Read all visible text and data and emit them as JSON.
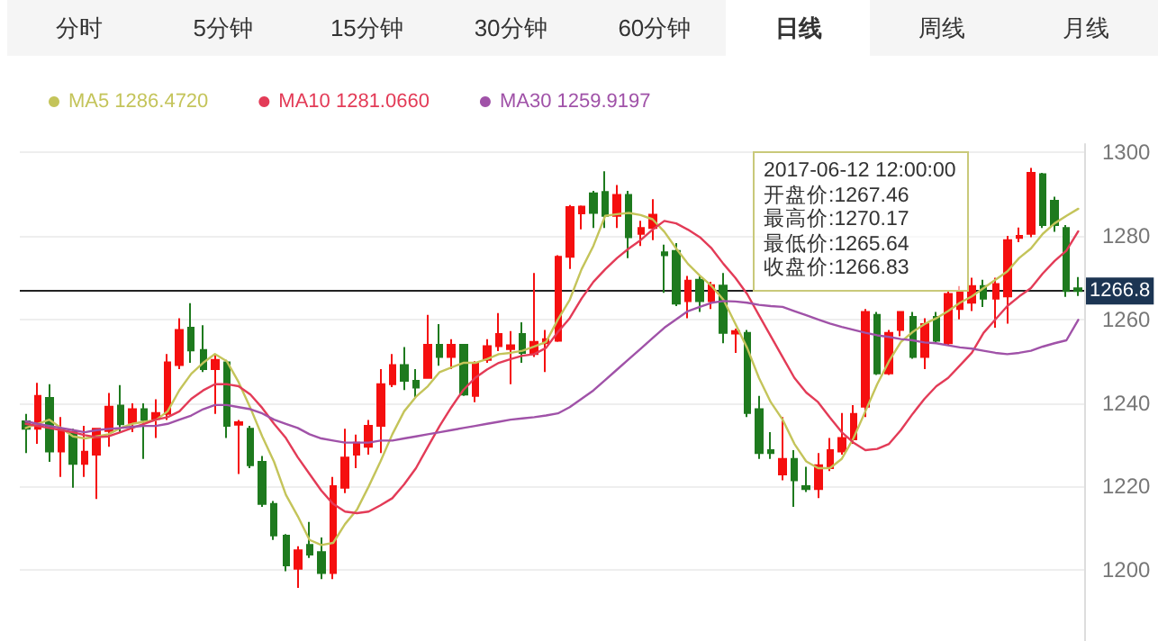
{
  "chart_data": {
    "type": "candlestick",
    "categories": [
      null,
      null,
      null,
      null,
      null,
      null,
      null,
      null,
      null,
      null,
      null,
      null,
      null,
      null,
      null,
      null,
      null,
      null,
      null,
      null,
      null,
      null,
      null,
      null,
      null,
      null,
      null,
      null,
      null,
      null,
      null,
      null,
      null,
      null,
      null,
      null,
      null,
      null,
      null,
      null,
      null,
      null,
      null,
      null,
      null,
      null,
      null,
      null,
      null,
      null,
      null,
      null,
      null,
      null,
      null,
      null,
      null,
      null,
      null,
      null,
      null,
      null,
      null,
      null,
      null,
      null,
      null,
      null,
      null,
      null,
      null,
      null,
      null,
      null,
      null,
      null,
      null,
      null,
      null,
      null,
      null,
      null,
      null,
      null,
      null,
      null,
      null,
      null,
      null,
      null
    ],
    "ohlc": [
      [
        1235.6,
        1237.4,
        1228.0,
        1233.8
      ],
      [
        1233.8,
        1244.8,
        1230.2,
        1241.7
      ],
      [
        1241.2,
        1244.5,
        1225.9,
        1228.4
      ],
      [
        1228.4,
        1236.6,
        1222.3,
        1233.8
      ],
      [
        1233.0,
        1233.8,
        1219.7,
        1225.4
      ],
      [
        1225.4,
        1234.5,
        1222.3,
        1228.3
      ],
      [
        1227.6,
        1233.8,
        1217.0,
        1233.8
      ],
      [
        1233.3,
        1242.4,
        1229.5,
        1239.1
      ],
      [
        1239.4,
        1244.3,
        1233.0,
        1234.9
      ],
      [
        1235.2,
        1239.9,
        1233.0,
        1238.5
      ],
      [
        1238.5,
        1239.9,
        1226.6,
        1235.9
      ],
      [
        1236.2,
        1240.9,
        1231.6,
        1237.6
      ],
      [
        1237.4,
        1251.7,
        1235.9,
        1249.7
      ],
      [
        1249.1,
        1260.3,
        1248.1,
        1257.5
      ],
      [
        1258.0,
        1263.9,
        1249.6,
        1252.6
      ],
      [
        1252.7,
        1258.6,
        1247.4,
        1248.1
      ],
      [
        1248.1,
        1251.7,
        1237.4,
        1250.3
      ],
      [
        1249.7,
        1250.3,
        1231.6,
        1234.5
      ],
      [
        1234.8,
        1235.9,
        1223.0,
        1235.4
      ],
      [
        1233.8,
        1234.5,
        1224.4,
        1225.1
      ],
      [
        1225.9,
        1227.3,
        1215.1,
        1215.8
      ],
      [
        1215.8,
        1216.5,
        1207.2,
        1208.3
      ],
      [
        1208.2,
        1208.6,
        1199.7,
        1201.1
      ],
      [
        1200.3,
        1205.7,
        1195.7,
        1204.7
      ],
      [
        1206.0,
        1211.5,
        1202.9,
        1203.7
      ],
      [
        1204.3,
        1207.8,
        1197.8,
        1199.3
      ],
      [
        1199.3,
        1222.3,
        1197.8,
        1220.1
      ],
      [
        1219.7,
        1233.8,
        1218.4,
        1226.9
      ],
      [
        1227.6,
        1232.4,
        1224.4,
        1230.5
      ],
      [
        1229.5,
        1235.9,
        1227.6,
        1234.5
      ],
      [
        1234.5,
        1248.1,
        1228.0,
        1244.5
      ],
      [
        1244.5,
        1251.7,
        1243.8,
        1249.1
      ],
      [
        1249.1,
        1253.4,
        1243.1,
        1245.3
      ],
      [
        1245.3,
        1248.1,
        1241.4,
        1243.7
      ],
      [
        1246.0,
        1261.1,
        1246.0,
        1253.9
      ],
      [
        1253.9,
        1258.9,
        1248.9,
        1251.0
      ],
      [
        1251.0,
        1255.3,
        1248.1,
        1253.9
      ],
      [
        1253.9,
        1253.9,
        1241.7,
        1242.0
      ],
      [
        1241.7,
        1250.0,
        1240.2,
        1249.4
      ],
      [
        1250.3,
        1255.3,
        1249.6,
        1253.6
      ],
      [
        1253.6,
        1261.5,
        1252.4,
        1256.5
      ],
      [
        1252.9,
        1257.2,
        1244.5,
        1253.8
      ],
      [
        1256.5,
        1259.3,
        1249.6,
        1252.0
      ],
      [
        1251.7,
        1271.1,
        1251.0,
        1254.6
      ],
      [
        1254.3,
        1257.5,
        1247.4,
        1255.3
      ],
      [
        1254.9,
        1275.4,
        1254.6,
        1275.0
      ],
      [
        1275.0,
        1287.4,
        1272.1,
        1286.9
      ],
      [
        1285.4,
        1287.3,
        1281.6,
        1287.0
      ],
      [
        1290.2,
        1290.8,
        1281.9,
        1285.5
      ],
      [
        1290.5,
        1295.5,
        1281.9,
        1284.8
      ],
      [
        1284.8,
        1292.2,
        1281.9,
        1289.8
      ],
      [
        1289.8,
        1290.8,
        1274.7,
        1279.7
      ],
      [
        1280.5,
        1283.6,
        1277.6,
        1281.9
      ],
      [
        1281.9,
        1288.8,
        1279.0,
        1285.1
      ],
      [
        1276.1,
        1277.9,
        1266.4,
        1275.4
      ],
      [
        1276.4,
        1278.3,
        1263.2,
        1263.8
      ],
      [
        1264.4,
        1270.4,
        1260.3,
        1269.3
      ],
      [
        1269.5,
        1270.4,
        1261.8,
        1264.4
      ],
      [
        1264.4,
        1269.0,
        1262.5,
        1268.2
      ],
      [
        1268.1,
        1271.1,
        1254.3,
        1256.8
      ],
      [
        1256.6,
        1257.8,
        1252.0,
        1257.2
      ],
      [
        1256.8,
        1257.5,
        1236.6,
        1237.6
      ],
      [
        1238.5,
        1241.7,
        1226.6,
        1228.0
      ],
      [
        1228.7,
        1233.0,
        1226.6,
        1228.0
      ],
      [
        1222.9,
        1236.6,
        1221.5,
        1226.6
      ],
      [
        1226.6,
        1228.7,
        1215.1,
        1221.5
      ],
      [
        1220.1,
        1224.7,
        1218.7,
        1219.4
      ],
      [
        1219.4,
        1228.0,
        1217.2,
        1225.1
      ],
      [
        1224.4,
        1231.6,
        1223.7,
        1228.7
      ],
      [
        1228.4,
        1237.6,
        1227.6,
        1231.6
      ],
      [
        1231.3,
        1239.5,
        1230.2,
        1237.4
      ],
      [
        1239.1,
        1262.5,
        1236.6,
        1261.8
      ],
      [
        1261.1,
        1261.8,
        1246.7,
        1247.1
      ],
      [
        1247.1,
        1257.5,
        1246.7,
        1256.8
      ],
      [
        1257.5,
        1262.0,
        1256.0,
        1261.8
      ],
      [
        1260.6,
        1261.8,
        1250.6,
        1251.0
      ],
      [
        1251.0,
        1260.3,
        1248.1,
        1258.9
      ],
      [
        1260.6,
        1261.8,
        1254.3,
        1254.9
      ],
      [
        1254.3,
        1266.8,
        1253.9,
        1266.1
      ],
      [
        1262.5,
        1268.0,
        1260.0,
        1266.5
      ],
      [
        1264.0,
        1270.0,
        1262.0,
        1268.0
      ],
      [
        1268.0,
        1269.5,
        1263.0,
        1265.0
      ],
      [
        1265.0,
        1270.0,
        1258.0,
        1268.5
      ],
      [
        1265.5,
        1280.0,
        1259.0,
        1279.0
      ],
      [
        1279.5,
        1282.0,
        1278.5,
        1280.0
      ],
      [
        1280.5,
        1296.3,
        1279.7,
        1295.1
      ],
      [
        1294.8,
        1295.1,
        1281.9,
        1282.6
      ],
      [
        1288.4,
        1289.4,
        1281.0,
        1282.6
      ],
      [
        1281.9,
        1282.6,
        1265.4,
        1266.8
      ],
      [
        1267.46,
        1270.17,
        1265.64,
        1266.83
      ]
    ],
    "colors": [
      "#1e7a1e",
      "#f50f0f",
      "#1e7a1e",
      "#f50f0f",
      "#1e7a1e",
      "#f50f0f",
      "#f50f0f",
      "#f50f0f",
      "#1e7a1e",
      "#f50f0f",
      "#1e7a1e",
      "#f50f0f",
      "#f50f0f",
      "#f50f0f",
      "#1e7a1e",
      "#1e7a1e",
      "#f50f0f",
      "#1e7a1e",
      "#f50f0f",
      "#1e7a1e",
      "#1e7a1e",
      "#1e7a1e",
      "#1e7a1e",
      "#f50f0f",
      "#1e7a1e",
      "#1e7a1e",
      "#f50f0f",
      "#f50f0f",
      "#f50f0f",
      "#f50f0f",
      "#f50f0f",
      "#f50f0f",
      "#1e7a1e",
      "#1e7a1e",
      "#f50f0f",
      "#1e7a1e",
      "#f50f0f",
      "#1e7a1e",
      "#f50f0f",
      "#f50f0f",
      "#f50f0f",
      "#f50f0f",
      "#1e7a1e",
      "#f50f0f",
      "#f50f0f",
      "#f50f0f",
      "#f50f0f",
      "#f50f0f",
      "#1e7a1e",
      "#1e7a1e",
      "#f50f0f",
      "#1e7a1e",
      "#f50f0f",
      "#f50f0f",
      "#1e7a1e",
      "#1e7a1e",
      "#f50f0f",
      "#1e7a1e",
      "#f50f0f",
      "#1e7a1e",
      "#f50f0f",
      "#1e7a1e",
      "#1e7a1e",
      "#1e7a1e",
      "#f50f0f",
      "#1e7a1e",
      "#1e7a1e",
      "#f50f0f",
      "#f50f0f",
      "#f50f0f",
      "#f50f0f",
      "#f50f0f",
      "#1e7a1e",
      "#f50f0f",
      "#f50f0f",
      "#1e7a1e",
      "#f50f0f",
      "#1e7a1e",
      "#f50f0f",
      "#f50f0f",
      "#f50f0f",
      "#1e7a1e",
      "#f50f0f",
      "#f50f0f",
      "#f50f0f",
      "#f50f0f",
      "#1e7a1e",
      "#1e7a1e",
      "#1e7a1e",
      "#1e7a1e"
    ],
    "series": [
      {
        "name": "MA5 1286.4720",
        "type": "line",
        "color": "#c4c45a",
        "values": [
          1234,
          1235,
          1236,
          1234,
          1232,
          1231.5,
          1232,
          1232.5,
          1234,
          1235,
          1235.5,
          1235.9,
          1238,
          1243.1,
          1247,
          1249.6,
          1251.7,
          1250,
          1245,
          1238.8,
          1232,
          1225.9,
          1218,
          1212.9,
          1207.2,
          1206,
          1206.5,
          1211,
          1214.4,
          1220,
          1226,
          1232.5,
          1238,
          1241.5,
          1244,
          1247.4,
          1248.5,
          1249.6,
          1249.6,
          1250.5,
          1251.7,
          1252,
          1252.5,
          1253.5,
          1254.6,
          1260,
          1264.7,
          1272,
          1277.6,
          1284.8,
          1285.2,
          1285.5,
          1285,
          1284,
          1281,
          1277,
          1273.3,
          1270.5,
          1268,
          1264.7,
          1259,
          1253.2,
          1246,
          1240.2,
          1236,
          1230.2,
          1226,
          1224.4,
          1224.4,
          1226.6,
          1231.6,
          1238,
          1244.5,
          1250,
          1254.6,
          1257,
          1258.9,
          1260.3,
          1262,
          1264,
          1265.5,
          1267.5,
          1269.5,
          1271.5,
          1274.7,
          1277,
          1280.5,
          1283,
          1284.8,
          1286.5
        ]
      },
      {
        "name": "MA10 1281.0660",
        "type": "line",
        "color": "#e33b57",
        "values": [
          1235,
          1234.5,
          1234,
          1233.5,
          1233,
          1232.3,
          1231.8,
          1232,
          1233,
          1234,
          1235,
          1236,
          1236.6,
          1238,
          1241,
          1243,
          1244.5,
          1244.5,
          1244,
          1242,
          1238.8,
          1235,
          1231.6,
          1227,
          1223,
          1219,
          1215.8,
          1214,
          1213.6,
          1214,
          1215.5,
          1217.2,
          1220.5,
          1224.4,
          1229.5,
          1234.5,
          1239,
          1243.1,
          1246,
          1248,
          1249.6,
          1250.5,
          1251.3,
          1251.7,
          1253.2,
          1257,
          1260.3,
          1265,
          1269,
          1272,
          1274.7,
          1277,
          1279,
          1281.5,
          1283.6,
          1283,
          1281.5,
          1279.7,
          1277,
          1273.3,
          1270,
          1266.1,
          1261,
          1256,
          1251,
          1246,
          1242.5,
          1240.2,
          1236.5,
          1233,
          1230.5,
          1228.7,
          1229,
          1230.2,
          1233.5,
          1237.4,
          1241,
          1244,
          1246,
          1249,
          1252,
          1256.8,
          1260,
          1263.2,
          1265.5,
          1267.5,
          1271,
          1274,
          1276.5,
          1281.1
        ]
      },
      {
        "name": "MA30 1259.9197",
        "type": "line",
        "color": "#a052a8",
        "values": [
          1235.6,
          1235,
          1234.5,
          1234,
          1233.5,
          1233,
          1233.5,
          1233.8,
          1234,
          1234.3,
          1234.5,
          1234.5,
          1235,
          1236,
          1237,
          1238.5,
          1239.5,
          1239.5,
          1239,
          1238.5,
          1237.5,
          1236,
          1235,
          1234,
          1232.5,
          1231.5,
          1231,
          1230.5,
          1230.5,
          1230.5,
          1231,
          1231,
          1231.5,
          1232,
          1232.5,
          1233,
          1233.5,
          1234,
          1234.5,
          1235,
          1235.5,
          1236,
          1236.3,
          1236.6,
          1237,
          1237.5,
          1239,
          1241,
          1243,
          1245.5,
          1248,
          1250.5,
          1253,
          1255.5,
          1258,
          1260,
          1262,
          1263,
          1264,
          1264.4,
          1264.3,
          1264,
          1263.5,
          1263.2,
          1263,
          1262,
          1261,
          1260,
          1259,
          1258.2,
          1257.5,
          1256.8,
          1256.2,
          1255.8,
          1255.3,
          1255,
          1254.5,
          1254.3,
          1253.8,
          1253.3,
          1253,
          1252.5,
          1252,
          1251.7,
          1252,
          1252.5,
          1253.5,
          1254.3,
          1255,
          1259.9
        ]
      }
    ],
    "ylim": [
      1183,
      1302
    ],
    "yticks": [
      1200,
      1220,
      1240,
      1260,
      1280,
      1300
    ],
    "grid": "y",
    "tick_labels": "y",
    "legend": "top left",
    "line_style": "solid",
    "ref_lines": [
      {
        "axis": "y",
        "value": 1266.83,
        "label": "1266.8",
        "color": "#222222"
      }
    ],
    "annotations": [
      "分时",
      "5分钟",
      "15分钟",
      "30分钟",
      "60分钟",
      "日线",
      "周线",
      "月线",
      {
        "text": "2017-06-12 12:00:00"
      },
      {
        "text": "开盘价:1267.46"
      },
      {
        "text": "最高价:1270.17"
      },
      {
        "text": "最低价:1265.64"
      },
      {
        "text": "收盘价:1266.83"
      }
    ]
  }
}
